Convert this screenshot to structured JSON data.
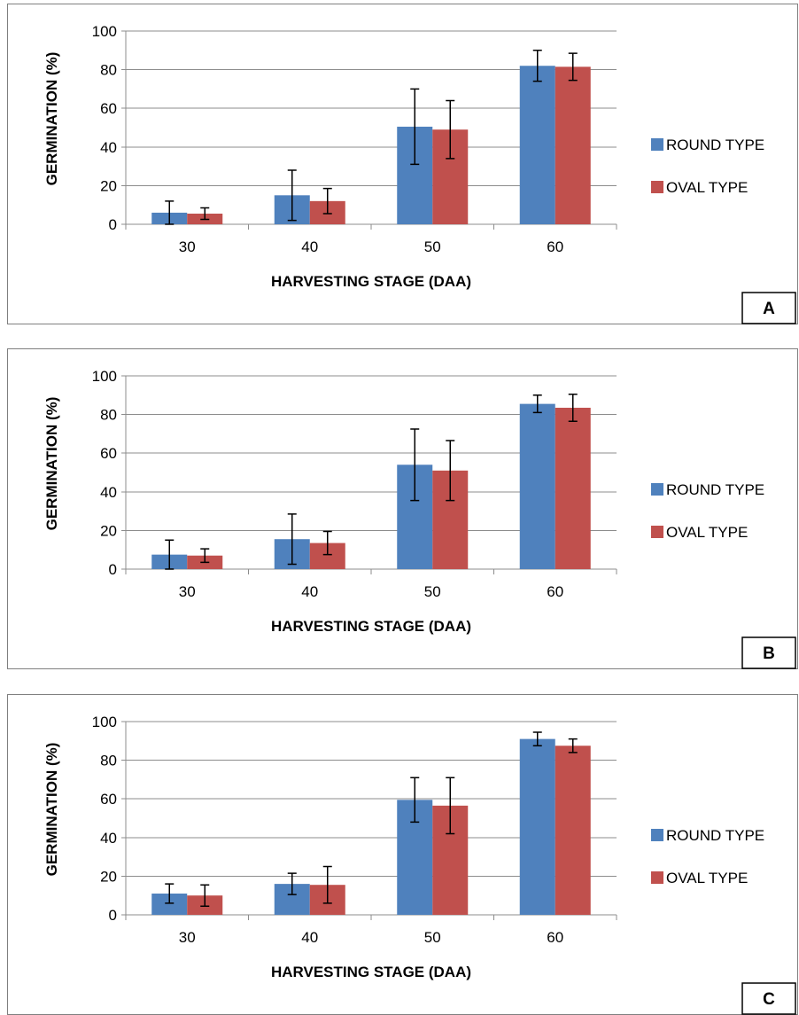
{
  "colors": {
    "round": "#4f81bd",
    "oval": "#c0504d"
  },
  "chart_data": [
    {
      "type": "bar",
      "panel_label": "A",
      "xlabel": "HARVESTING STAGE (DAA)",
      "ylabel": "GERMINATION (%)",
      "categories": [
        "30",
        "40",
        "50",
        "60"
      ],
      "ylim": [
        0,
        100
      ],
      "yticks": [
        "0",
        "20",
        "40",
        "60",
        "80",
        "100"
      ],
      "grid": true,
      "legend_position": "right",
      "series": [
        {
          "name": "ROUND TYPE",
          "values": [
            6,
            15,
            50.5,
            82
          ],
          "error": [
            6,
            13,
            19.5,
            8
          ]
        },
        {
          "name": "OVAL TYPE",
          "values": [
            5.5,
            12,
            49,
            81.5
          ],
          "error": [
            3,
            6.5,
            15,
            7
          ]
        }
      ]
    },
    {
      "type": "bar",
      "panel_label": "B",
      "xlabel": "HARVESTING STAGE (DAA)",
      "ylabel": "GERMINATION (%)",
      "categories": [
        "30",
        "40",
        "50",
        "60"
      ],
      "ylim": [
        0,
        100
      ],
      "yticks": [
        "0",
        "20",
        "40",
        "60",
        "80",
        "100"
      ],
      "grid": true,
      "legend_position": "right",
      "series": [
        {
          "name": "ROUND TYPE",
          "values": [
            7.5,
            15.5,
            54,
            85.5
          ],
          "error": [
            7.5,
            13,
            18.5,
            4.5
          ]
        },
        {
          "name": "OVAL TYPE",
          "values": [
            7,
            13.5,
            51,
            83.5
          ],
          "error": [
            3.5,
            6,
            15.5,
            7
          ]
        }
      ]
    },
    {
      "type": "bar",
      "panel_label": "C",
      "xlabel": "HARVESTING STAGE (DAA)",
      "ylabel": "GERMINATION (%)",
      "categories": [
        "30",
        "40",
        "50",
        "60"
      ],
      "ylim": [
        0,
        100
      ],
      "yticks": [
        "0",
        "20",
        "40",
        "60",
        "80",
        "100"
      ],
      "grid": true,
      "legend_position": "right",
      "series": [
        {
          "name": "ROUND TYPE",
          "values": [
            11,
            16,
            59.5,
            91
          ],
          "error": [
            5,
            5.5,
            11.5,
            3.5
          ]
        },
        {
          "name": "OVAL TYPE",
          "values": [
            10,
            15.5,
            56.5,
            87.5
          ],
          "error": [
            5.5,
            9.5,
            14.5,
            3.5
          ]
        }
      ]
    }
  ]
}
